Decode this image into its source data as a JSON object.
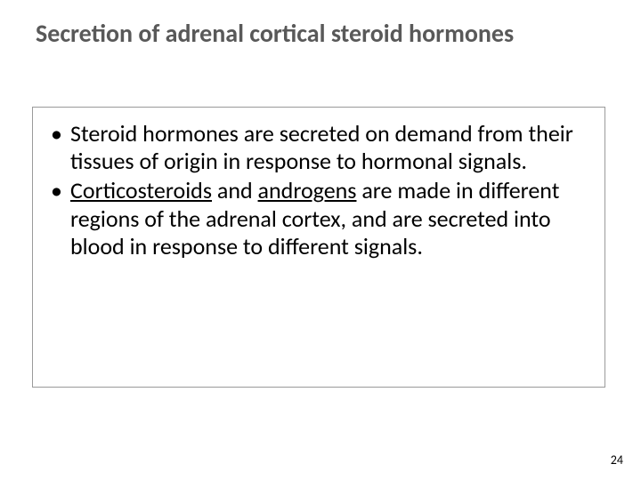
{
  "slide": {
    "title": "Secretion of adrenal cortical steroid hormones",
    "bullets": [
      {
        "pre": "Steroid hormones are secreted on demand from their tissues of origin in response to hormonal signals."
      },
      {
        "u1": "Corticosteroids",
        "mid1": " and ",
        "u2": "androgens",
        "post": " are made in different regions of the adrenal cortex, and are secreted into blood in response to different signals."
      }
    ],
    "page_number": "24"
  },
  "style": {
    "background_color": "#ffffff",
    "title_color": "#595959",
    "title_fontsize": 28,
    "body_fontsize": 26,
    "body_color": "#000000",
    "box_border_color": "#9a9a9a",
    "page_number_fontsize": 14
  }
}
